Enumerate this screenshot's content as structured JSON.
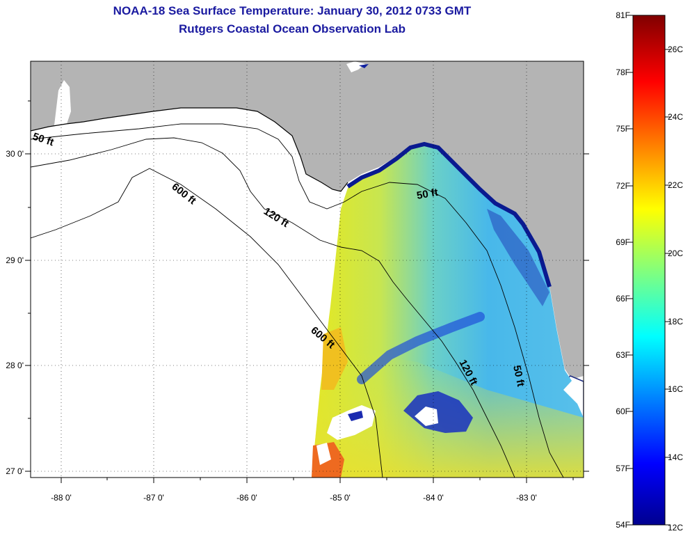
{
  "title": "NOAA-18 Sea Surface Temperature:  January 30, 2012 0733 GMT",
  "subtitle": "Rutgers Coastal Ocean Observation Lab",
  "map": {
    "longitude_labels": [
      "-88 0'",
      "-87 0'",
      "-86 0'",
      "-85 0'",
      "-84 0'",
      "-83 0'"
    ],
    "latitude_labels": [
      "30 0'",
      "29 0'",
      "28 0'",
      "27 0'"
    ],
    "depth_contour_labels": [
      "50 ft",
      "600 ft",
      "120 ft",
      "50 ft",
      "600 ft",
      "120 ft",
      "50 ft"
    ],
    "land_color": "#b4b4b4",
    "no_data_color": "#ffffff",
    "grid": "dotted"
  },
  "colorbar": {
    "fahrenheit_labels": [
      "81F",
      "78F",
      "75F",
      "72F",
      "69F",
      "66F",
      "63F",
      "60F",
      "57F",
      "54F"
    ],
    "celsius_labels": [
      "26C",
      "24C",
      "22C",
      "20C",
      "18C",
      "16C",
      "14C",
      "12C"
    ],
    "colormap": "jet",
    "colors": [
      "#00008f",
      "#0000ff",
      "#00ffff",
      "#ffff00",
      "#ff0000",
      "#800000"
    ]
  }
}
